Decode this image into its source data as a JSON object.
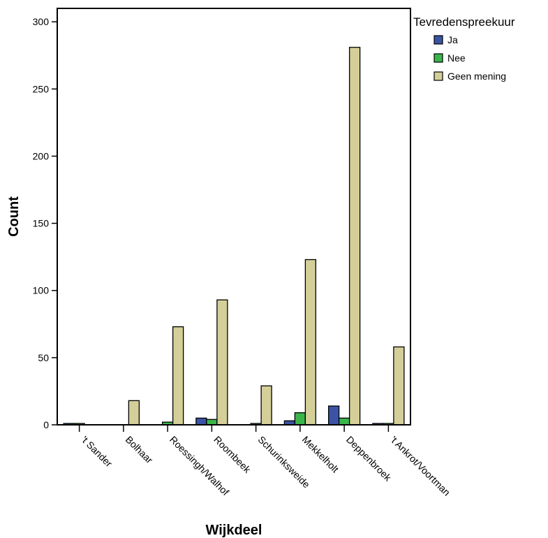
{
  "chart_data": {
    "type": "bar",
    "title": "",
    "xlabel": "Wijkdeel",
    "ylabel": "Count",
    "ylim": [
      0,
      310
    ],
    "yticks": [
      0,
      50,
      100,
      150,
      200,
      250,
      300
    ],
    "grid": false,
    "legend": {
      "title": "Tevredenspreekuur",
      "placement": "outside-top-right"
    },
    "categories": [
      "'t Sander",
      "Bolhaar",
      "Roessingh/Walhof",
      "Roombeek",
      "Schurinksweide",
      "Mekkelholt",
      "Deppenbroek",
      "'t Ankrot/Voortman"
    ],
    "series": [
      {
        "name": "Ja",
        "color": "#3a53a4",
        "values": [
          1,
          0,
          0,
          5,
          0,
          3,
          14,
          1
        ]
      },
      {
        "name": "Nee",
        "color": "#3ab54a",
        "values": [
          1,
          0,
          2,
          4,
          1,
          9,
          5,
          1
        ]
      },
      {
        "name": "Geen mening",
        "color": "#d4cf99",
        "values": [
          0,
          18,
          73,
          93,
          29,
          123,
          281,
          58
        ]
      }
    ]
  }
}
